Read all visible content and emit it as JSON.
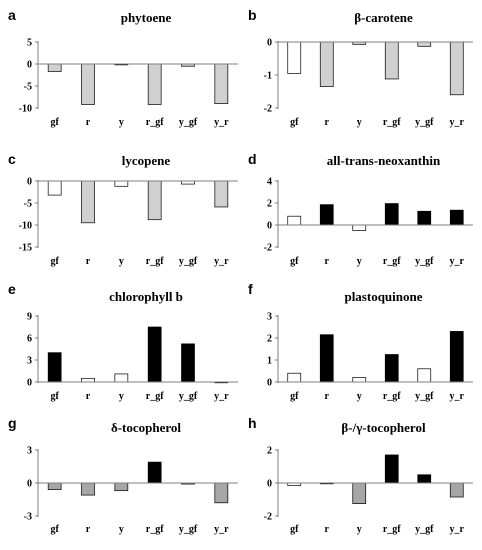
{
  "styles": {
    "white": "#ffffff",
    "light_grey": "#d0d0d0",
    "dark_grey": "#a6a6a6",
    "black": "#000000",
    "axis": "#7f7f7f"
  },
  "chart_data": [
    {
      "letter": "a",
      "title": "phytoene",
      "type": "bar",
      "categories": [
        "gf",
        "r",
        "y",
        "r_gf",
        "y_gf",
        "y_r"
      ],
      "values": [
        -1.7,
        -9.2,
        -0.2,
        -9.2,
        -0.5,
        -9.0
      ],
      "bar_styles": [
        "light_grey",
        "light_grey",
        "light_grey",
        "light_grey",
        "light_grey",
        "light_grey"
      ],
      "ylim": [
        -10,
        5
      ],
      "yticks": [
        5,
        0,
        -5,
        -10
      ],
      "xlabel": "",
      "ylabel": ""
    },
    {
      "letter": "b",
      "title": "β-carotene",
      "type": "bar",
      "categories": [
        "gf",
        "r",
        "y",
        "r_gf",
        "y_gf",
        "y_r"
      ],
      "values": [
        -0.95,
        -1.35,
        -0.07,
        -1.12,
        -0.13,
        -1.6
      ],
      "bar_styles": [
        "white",
        "light_grey",
        "light_grey",
        "light_grey",
        "light_grey",
        "light_grey"
      ],
      "ylim": [
        -2,
        0
      ],
      "yticks": [
        0,
        -1,
        -2
      ],
      "xlabel": "",
      "ylabel": ""
    },
    {
      "letter": "c",
      "title": "lycopene",
      "type": "bar",
      "categories": [
        "gf",
        "r",
        "y",
        "r_gf",
        "y_gf",
        "y_r"
      ],
      "values": [
        -3.2,
        -9.5,
        -1.2,
        -8.8,
        -0.7,
        -5.9
      ],
      "bar_styles": [
        "white",
        "light_grey",
        "white",
        "light_grey",
        "white",
        "light_grey"
      ],
      "ylim": [
        -15,
        0
      ],
      "yticks": [
        0,
        -5,
        -10,
        -15
      ],
      "xlabel": "",
      "ylabel": ""
    },
    {
      "letter": "d",
      "title": "all-trans-neoxanthin",
      "type": "bar",
      "categories": [
        "gf",
        "r",
        "y",
        "r_gf",
        "y_gf",
        "y_r"
      ],
      "values": [
        0.8,
        1.85,
        -0.5,
        1.95,
        1.25,
        1.35
      ],
      "bar_styles": [
        "white",
        "black",
        "white",
        "black",
        "black",
        "black"
      ],
      "ylim": [
        -2,
        4
      ],
      "yticks": [
        4,
        2,
        0,
        -2
      ],
      "xlabel": "",
      "ylabel": ""
    },
    {
      "letter": "e",
      "title": "chlorophyll b",
      "type": "bar",
      "categories": [
        "gf",
        "r",
        "y",
        "r_gf",
        "y_gf",
        "y_r"
      ],
      "values": [
        4.0,
        0.5,
        1.1,
        7.5,
        5.2,
        0.0
      ],
      "bar_styles": [
        "black",
        "white",
        "white",
        "black",
        "black",
        "black"
      ],
      "ylim": [
        0,
        9
      ],
      "yticks": [
        9,
        6,
        3,
        0
      ],
      "xlabel": "",
      "ylabel": ""
    },
    {
      "letter": "f",
      "title": "plastoquinone",
      "type": "bar",
      "categories": [
        "gf",
        "r",
        "y",
        "r_gf",
        "y_gf",
        "y_r"
      ],
      "values": [
        0.4,
        2.15,
        0.2,
        1.25,
        0.6,
        2.3
      ],
      "bar_styles": [
        "white",
        "black",
        "white",
        "black",
        "white",
        "black"
      ],
      "ylim": [
        0,
        3
      ],
      "yticks": [
        3,
        2,
        1,
        0
      ],
      "xlabel": "",
      "ylabel": ""
    },
    {
      "letter": "g",
      "title": "δ-tocopherol",
      "type": "bar",
      "categories": [
        "gf",
        "r",
        "y",
        "r_gf",
        "y_gf",
        "y_r"
      ],
      "values": [
        -0.6,
        -1.1,
        -0.7,
        1.9,
        -0.1,
        -1.8
      ],
      "bar_styles": [
        "dark_grey",
        "dark_grey",
        "dark_grey",
        "black",
        "dark_grey",
        "dark_grey"
      ],
      "ylim": [
        -3,
        3
      ],
      "yticks": [
        3,
        0,
        -3
      ],
      "xlabel": "",
      "ylabel": ""
    },
    {
      "letter": "h",
      "title": "β-/γ-tocopherol",
      "type": "bar",
      "categories": [
        "gf",
        "r",
        "y",
        "r_gf",
        "y_gf",
        "y_r"
      ],
      "values": [
        -0.15,
        -0.05,
        -1.25,
        1.7,
        0.5,
        -0.85
      ],
      "bar_styles": [
        "white",
        "white",
        "dark_grey",
        "black",
        "black",
        "dark_grey"
      ],
      "ylim": [
        -2,
        2
      ],
      "yticks": [
        2,
        0,
        -2
      ],
      "xlabel": "",
      "ylabel": ""
    }
  ]
}
